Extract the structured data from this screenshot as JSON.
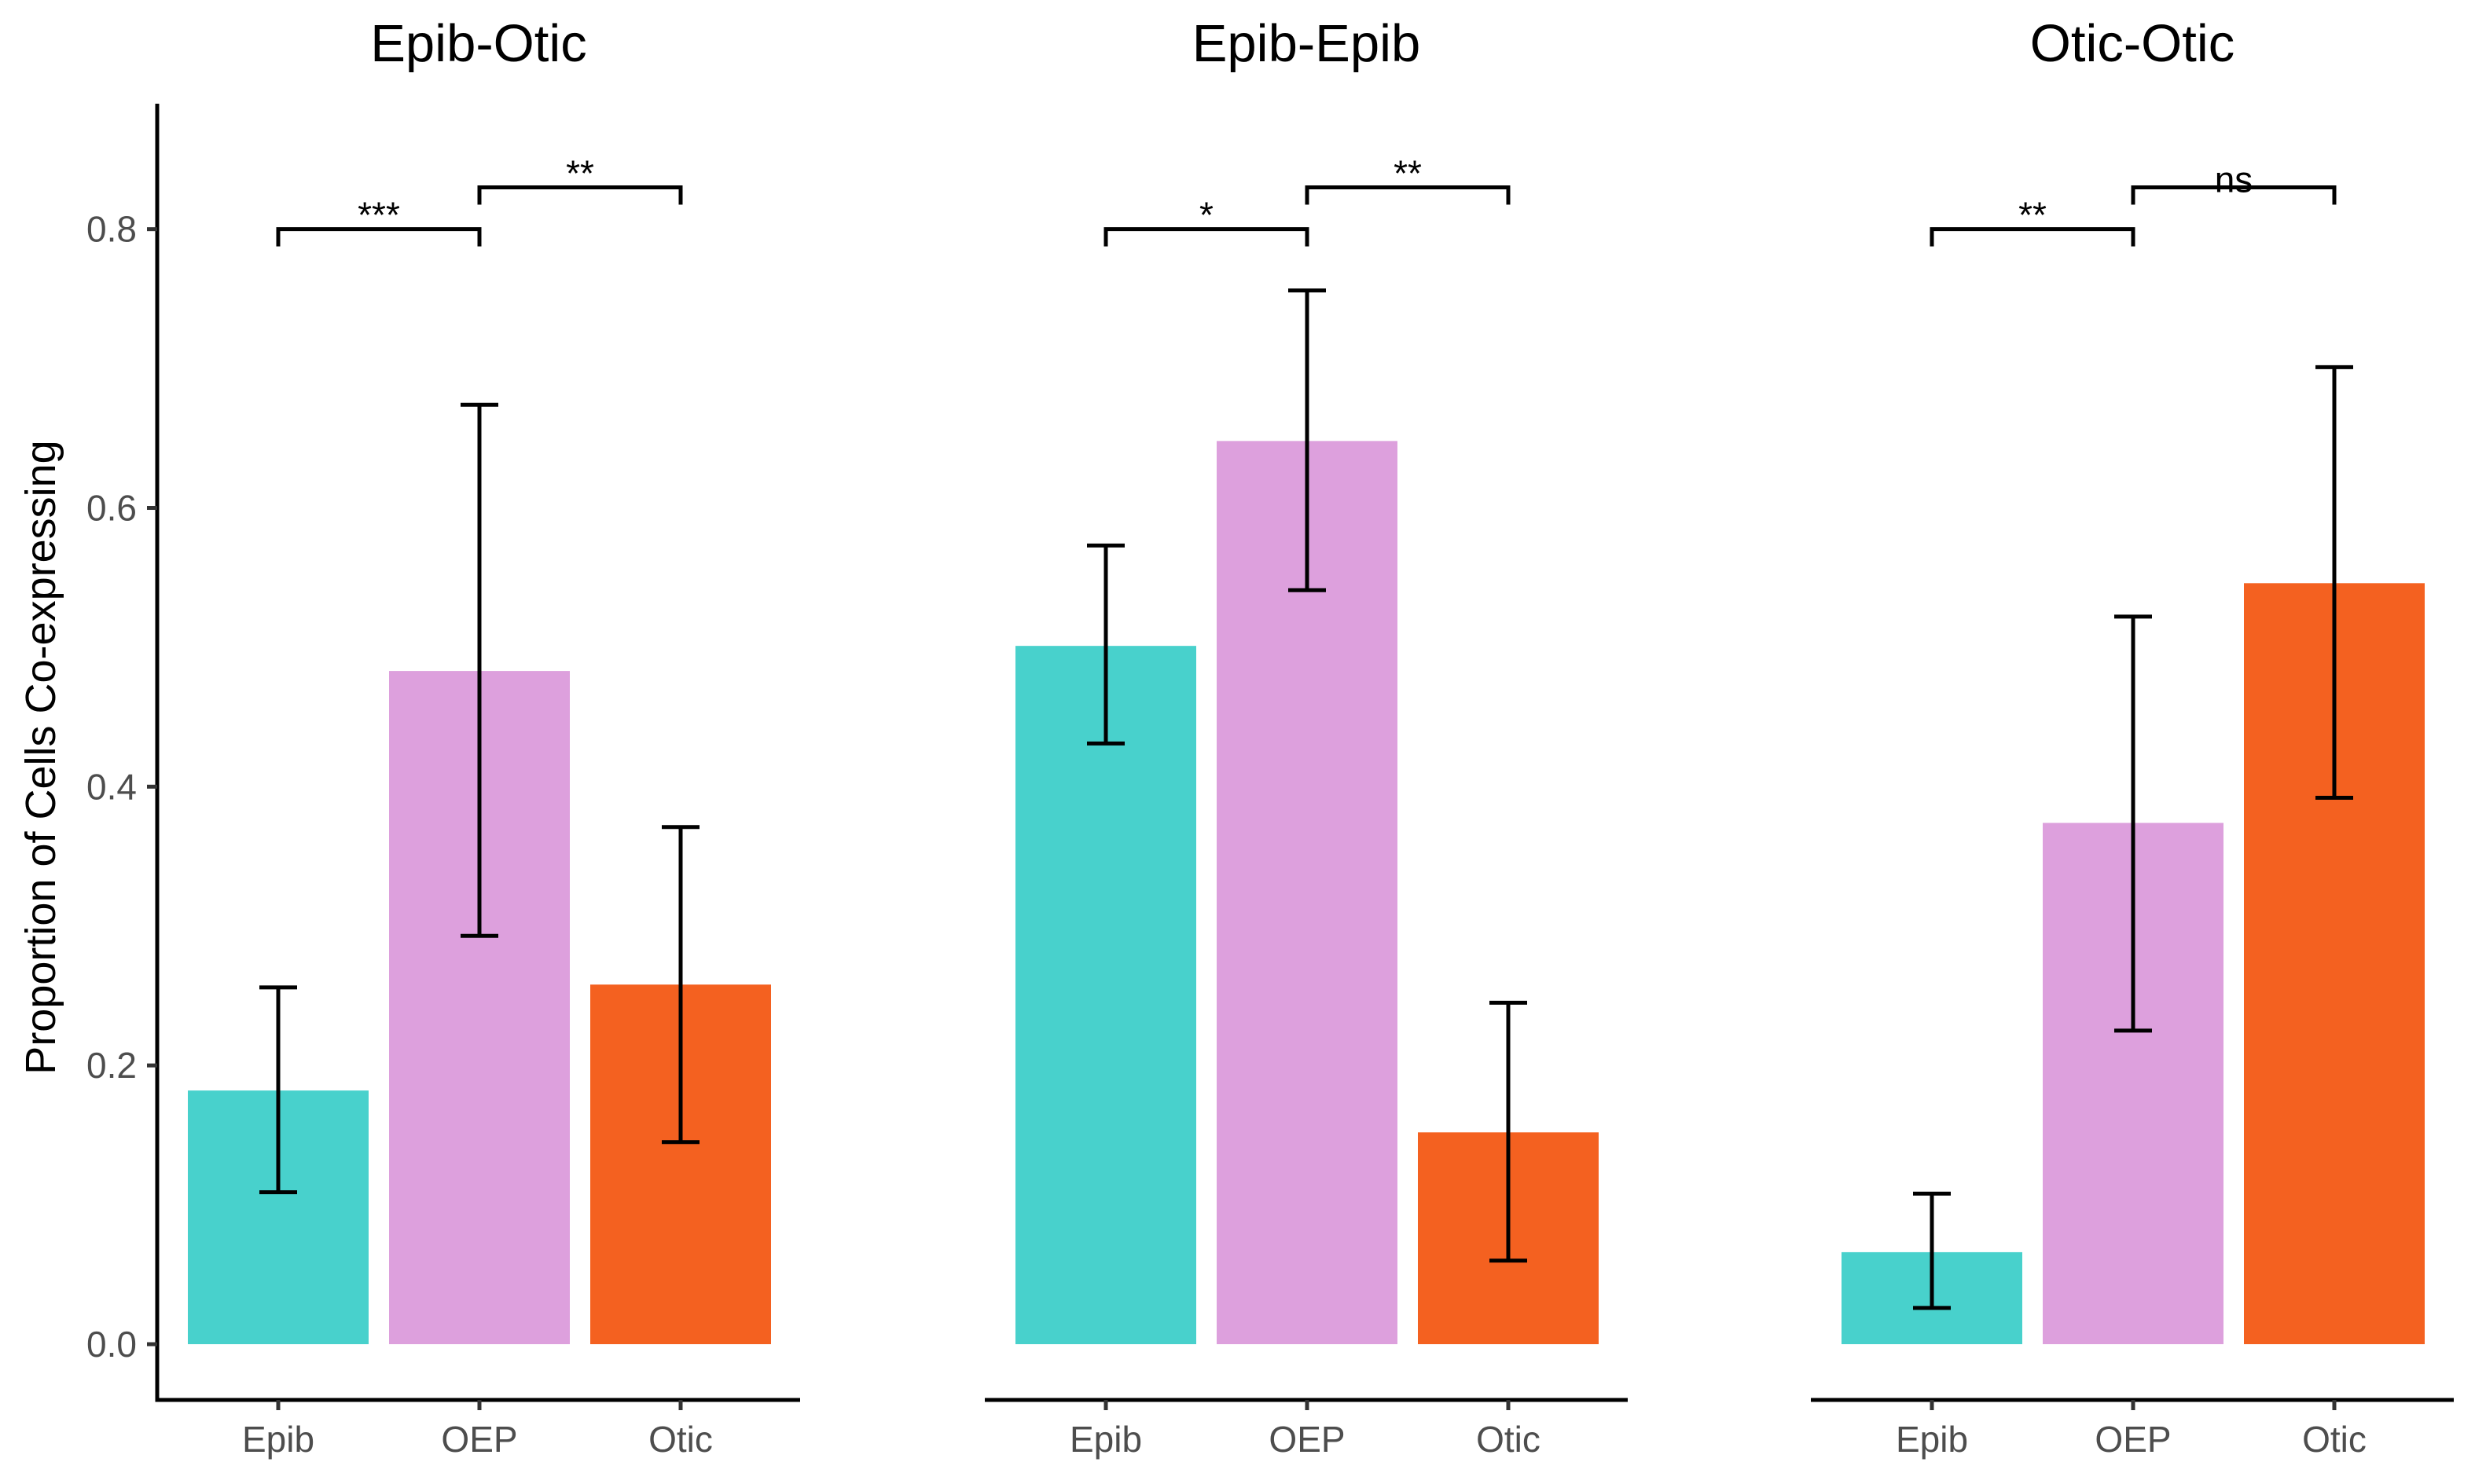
{
  "chart_data": {
    "type": "bar",
    "ylabel": "Proportion of Cells Co-expressing",
    "ylim": [
      -0.04,
      0.89
    ],
    "yticks": [
      "0.0",
      "0.2",
      "0.4",
      "0.6",
      "0.8"
    ],
    "ytick_values": [
      0.0,
      0.2,
      0.4,
      0.6,
      0.8
    ],
    "categories": [
      "Epib",
      "OEP",
      "Otic"
    ],
    "colors": {
      "Epib": "#48D1CC",
      "OEP": "#DDA0DD",
      "Otic": "#F46120"
    },
    "grid": false,
    "legend": "none",
    "panels": [
      {
        "title": "Epib-Otic",
        "bars": [
          {
            "category": "Epib",
            "value": 0.182,
            "err_low": 0.109,
            "err_high": 0.256
          },
          {
            "category": "OEP",
            "value": 0.483,
            "err_low": 0.293,
            "err_high": 0.674
          },
          {
            "category": "Otic",
            "value": 0.258,
            "err_low": 0.145,
            "err_high": 0.371
          }
        ],
        "comparisons": [
          {
            "from": "Epib",
            "to": "OEP",
            "label": "***",
            "y": 0.8
          },
          {
            "from": "OEP",
            "to": "Otic",
            "label": "**",
            "y": 0.83
          }
        ]
      },
      {
        "title": "Epib-Epib",
        "bars": [
          {
            "category": "Epib",
            "value": 0.501,
            "err_low": 0.431,
            "err_high": 0.573
          },
          {
            "category": "OEP",
            "value": 0.648,
            "err_low": 0.541,
            "err_high": 0.756
          },
          {
            "category": "Otic",
            "value": 0.152,
            "err_low": 0.06,
            "err_high": 0.245
          }
        ],
        "comparisons": [
          {
            "from": "Epib",
            "to": "OEP",
            "label": "*",
            "y": 0.8
          },
          {
            "from": "OEP",
            "to": "Otic",
            "label": "**",
            "y": 0.83
          }
        ]
      },
      {
        "title": "Otic-Otic",
        "bars": [
          {
            "category": "Epib",
            "value": 0.066,
            "err_low": 0.026,
            "err_high": 0.108
          },
          {
            "category": "OEP",
            "value": 0.374,
            "err_low": 0.225,
            "err_high": 0.522
          },
          {
            "category": "Otic",
            "value": 0.546,
            "err_low": 0.392,
            "err_high": 0.701
          }
        ],
        "comparisons": [
          {
            "from": "Epib",
            "to": "OEP",
            "label": "**",
            "y": 0.8
          },
          {
            "from": "OEP",
            "to": "Otic",
            "label": "ns",
            "y": 0.83
          }
        ]
      }
    ]
  }
}
